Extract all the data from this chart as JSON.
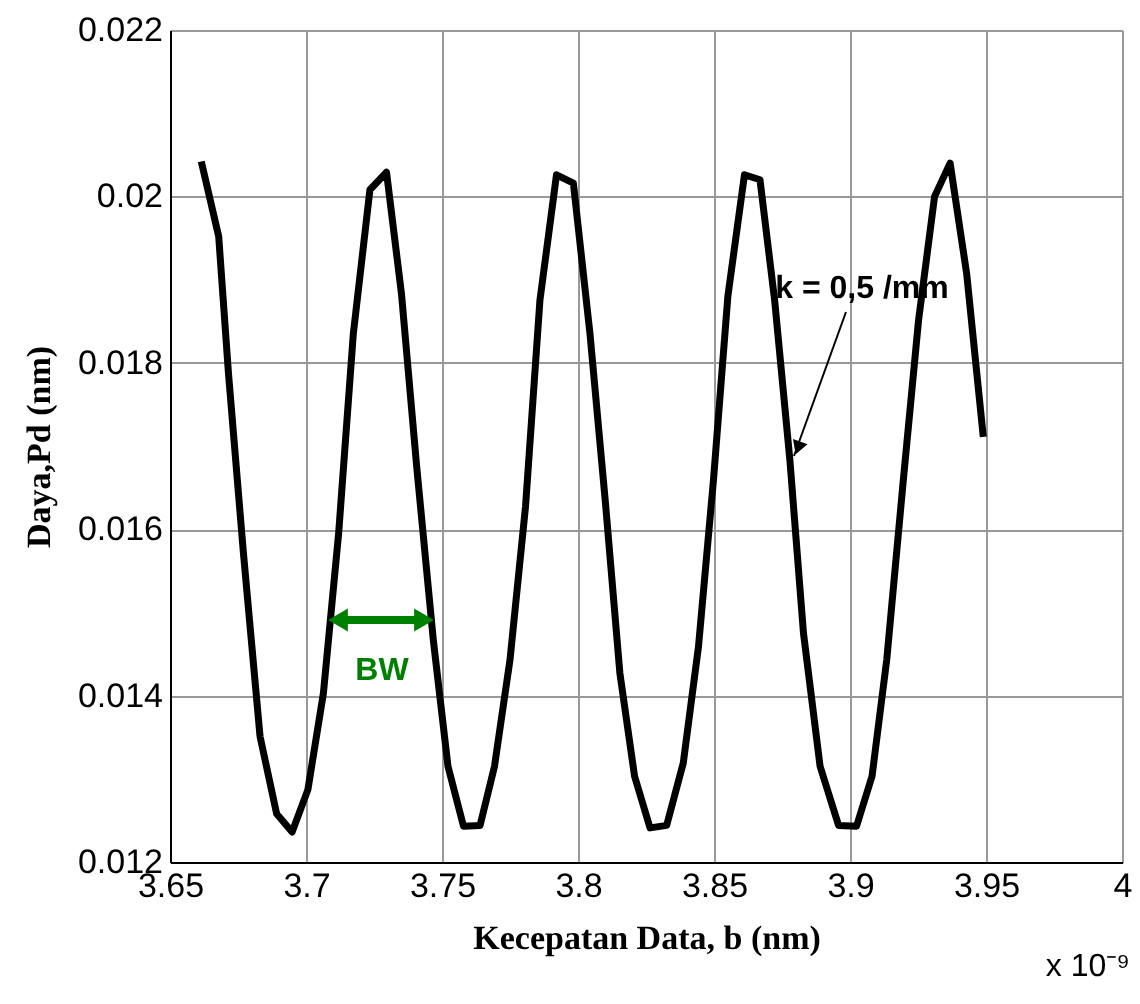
{
  "chart_data": {
    "type": "line",
    "xlabel": "Kecepatan Data, b (nm)",
    "ylabel": "Daya,Pd (nm)",
    "x": [
      3.6615,
      3.6679,
      3.6715,
      3.677,
      3.6831,
      3.6892,
      3.6949,
      3.7007,
      3.7064,
      3.712,
      3.7174,
      3.7235,
      3.7296,
      3.7351,
      3.7407,
      3.7468,
      3.7522,
      3.7579,
      3.764,
      3.7693,
      3.775,
      3.7807,
      3.786,
      3.7921,
      3.7983,
      3.8044,
      3.81,
      3.8154,
      3.8208,
      3.8265,
      3.8326,
      3.8387,
      3.8443,
      3.8498,
      3.8551,
      3.8612,
      3.8669,
      3.8723,
      3.8779,
      3.8829,
      3.889,
      3.8958,
      3.9024,
      3.9081,
      3.9135,
      3.9196,
      3.9252,
      3.9311,
      3.9368,
      3.9429,
      3.949
    ],
    "series": [
      {
        "color": "#000000",
        "values": [
          0.02042,
          0.01952,
          0.01787,
          0.01571,
          0.01351,
          0.01258,
          0.01236,
          0.01287,
          0.01403,
          0.01595,
          0.01835,
          0.02008,
          0.02029,
          0.01883,
          0.01675,
          0.01467,
          0.01315,
          0.01243,
          0.01244,
          0.01315,
          0.01443,
          0.01627,
          0.01875,
          0.02026,
          0.02016,
          0.01835,
          0.01635,
          0.01427,
          0.01303,
          0.01241,
          0.01244,
          0.01319,
          0.01459,
          0.01659,
          0.0188,
          0.02026,
          0.0202,
          0.01875,
          0.01683,
          0.01475,
          0.01315,
          0.01244,
          0.01243,
          0.01303,
          0.01443,
          0.01659,
          0.01851,
          0.02,
          0.0204,
          0.01907,
          0.01711
        ]
      }
    ],
    "xlim": [
      3.65,
      4
    ],
    "xticks": [
      3.65,
      3.7,
      3.75,
      3.8,
      3.85,
      3.9,
      3.95,
      4
    ],
    "ylim": [
      0.012,
      0.022
    ],
    "yticks": [
      0.012,
      0.014,
      0.016,
      0.018,
      0.02,
      0.022
    ],
    "grid": true,
    "line_style": "solid",
    "annotations": [
      "BW",
      {
        "text": "k = 0,5 /mm",
        "x": 3.8794,
        "y": 0.01688
      },
      "x 10⁻⁹"
    ]
  }
}
